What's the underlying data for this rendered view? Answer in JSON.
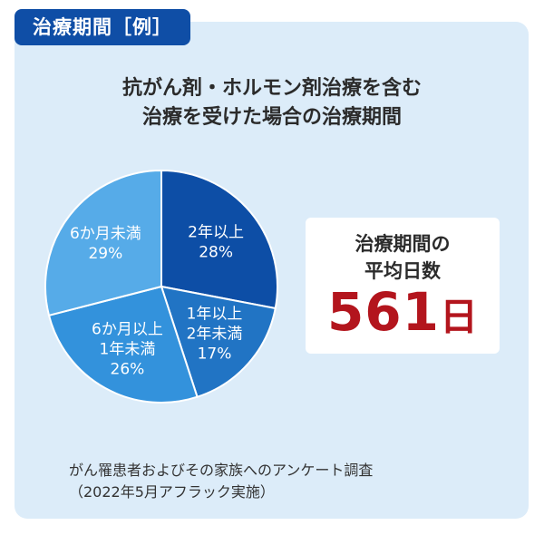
{
  "tag_label": "治療期間［例］",
  "title_lines": [
    "抗がん剤・ホルモン剤治療を含む",
    "治療を受けた場合の治療期間"
  ],
  "card": {
    "label_lines": [
      "治療期間の",
      "平均日数"
    ],
    "value": "561",
    "unit": "日"
  },
  "source_lines": [
    "がん罹患者およびその家族へのアンケート調査",
    "（2022年5月アフラック実施）"
  ],
  "chart_data": {
    "type": "pie",
    "slices": [
      {
        "label_lines": [
          "2年以上"
        ],
        "pct_text": "28%",
        "value": 28,
        "color": "#0d4ea6"
      },
      {
        "label_lines": [
          "1年以上",
          "2年未満"
        ],
        "pct_text": "17%",
        "value": 17,
        "color": "#2174c4"
      },
      {
        "label_lines": [
          "6か月以上",
          "1年未満"
        ],
        "pct_text": "26%",
        "value": 26,
        "color": "#3392dc"
      },
      {
        "label_lines": [
          "6か月未満"
        ],
        "pct_text": "29%",
        "value": 29,
        "color": "#56abe8"
      }
    ]
  }
}
